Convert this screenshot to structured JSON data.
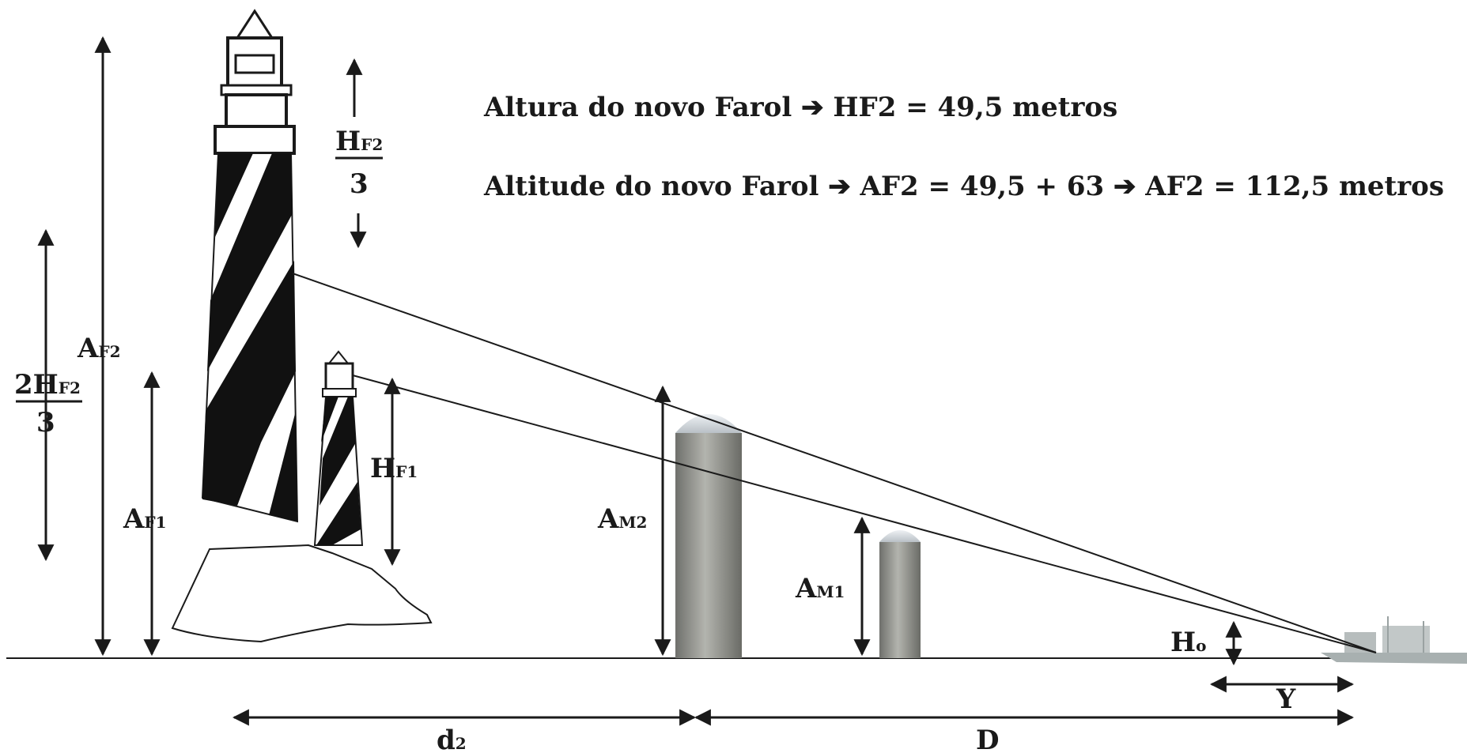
{
  "equations": {
    "line1": "Altura do novo Farol ➔ HF2 = 49,5 metros",
    "line2": "Altitude do novo Farol ➔ AF2 = 49,5 + 63  ➔  AF2 = 112,5 metros"
  },
  "labels": {
    "af2": {
      "main": "A",
      "sub": "F2"
    },
    "hf2_third": {
      "numerator_main": "H",
      "numerator_sub": "F2",
      "denominator": "3"
    },
    "two_hf2_third": {
      "numerator_main": "2H",
      "numerator_sub": "F2",
      "denominator": "3"
    },
    "af1": {
      "main": "A",
      "sub": "F1"
    },
    "hf1": {
      "main": "H",
      "sub": "F1"
    },
    "am2": {
      "main": "A",
      "sub": "M2"
    },
    "am1": {
      "main": "A",
      "sub": "M1"
    },
    "ho": {
      "main": "H",
      "sub": "o"
    },
    "y": "Y",
    "d2": {
      "main": "d",
      "sub": "2"
    },
    "D": "D"
  },
  "colors": {
    "line": "#1a1a1a",
    "lighthouse_dark": "#111111",
    "lighthouse_light": "#ffffff",
    "silo": "#9a9a94",
    "silo_dome": "#d8dde2",
    "ship": "#a8b0b0"
  }
}
